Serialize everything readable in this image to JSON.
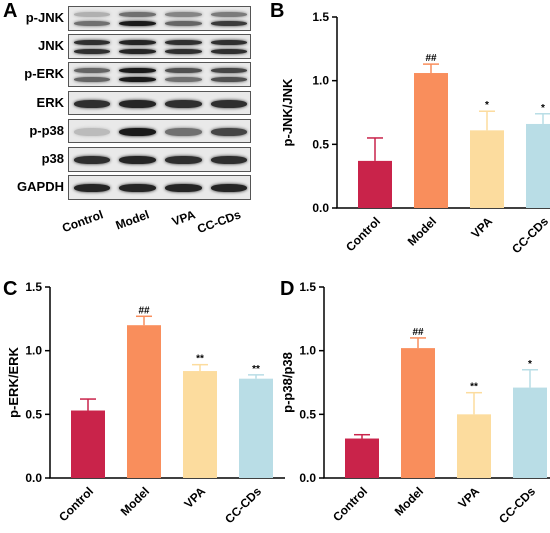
{
  "panels": {
    "A": "A",
    "B": "B",
    "C": "C",
    "D": "D"
  },
  "blot": {
    "rows": [
      {
        "label": "p-JNK",
        "bands": [
          [
            0.25,
            0.55
          ],
          [
            0.55,
            0.95
          ],
          [
            0.45,
            0.6
          ],
          [
            0.5,
            0.8
          ]
        ]
      },
      {
        "label": "JNK",
        "bands": [
          [
            0.85,
            0.85
          ],
          [
            0.9,
            0.9
          ],
          [
            0.85,
            0.85
          ],
          [
            0.85,
            0.85
          ]
        ]
      },
      {
        "label": "p-ERK",
        "bands": [
          [
            0.6,
            0.6
          ],
          [
            0.95,
            0.95
          ],
          [
            0.7,
            0.55
          ],
          [
            0.75,
            0.7
          ]
        ]
      },
      {
        "label": "ERK",
        "bands": [
          [
            0.85
          ],
          [
            0.9
          ],
          [
            0.85
          ],
          [
            0.85
          ]
        ]
      },
      {
        "label": "p-p38",
        "bands": [
          [
            0.2
          ],
          [
            0.95
          ],
          [
            0.55
          ],
          [
            0.75
          ]
        ]
      },
      {
        "label": "p38",
        "bands": [
          [
            0.85
          ],
          [
            0.9
          ],
          [
            0.85
          ],
          [
            0.85
          ]
        ]
      },
      {
        "label": "GAPDH",
        "bands": [
          [
            0.9
          ],
          [
            0.9
          ],
          [
            0.9
          ],
          [
            0.9
          ]
        ]
      }
    ],
    "lanes": [
      "Control",
      "Model",
      "VPA",
      "CC-CDs"
    ]
  },
  "chart_data": [
    {
      "type": "bar",
      "panel": "B",
      "categories": [
        "Control",
        "Model",
        "VPA",
        "CC-CDs"
      ],
      "values": [
        0.37,
        1.06,
        0.61,
        0.66
      ],
      "errors": [
        0.18,
        0.07,
        0.15,
        0.08
      ],
      "annotations": [
        "",
        "##",
        "*",
        "*"
      ],
      "colors": [
        "#c9234a",
        "#f98e5c",
        "#fcdc9e",
        "#b9dde6"
      ],
      "ylabel": "p-JNK/JNK",
      "ylim": [
        0,
        1.5
      ],
      "yticks": [
        "0.0",
        "0.5",
        "1.0",
        "1.5"
      ]
    },
    {
      "type": "bar",
      "panel": "C",
      "categories": [
        "Control",
        "Model",
        "VPA",
        "CC-CDs"
      ],
      "values": [
        0.53,
        1.2,
        0.84,
        0.78
      ],
      "errors": [
        0.09,
        0.07,
        0.05,
        0.03
      ],
      "annotations": [
        "",
        "##",
        "**",
        "**"
      ],
      "colors": [
        "#c9234a",
        "#f98e5c",
        "#fcdc9e",
        "#b9dde6"
      ],
      "ylabel": "p-ERK/ERK",
      "ylim": [
        0,
        1.5
      ],
      "yticks": [
        "0.0",
        "0.5",
        "1.0",
        "1.5"
      ]
    },
    {
      "type": "bar",
      "panel": "D",
      "categories": [
        "Control",
        "Model",
        "VPA",
        "CC-CDs"
      ],
      "values": [
        0.31,
        1.02,
        0.5,
        0.71
      ],
      "errors": [
        0.03,
        0.08,
        0.17,
        0.14
      ],
      "annotations": [
        "",
        "##",
        "**",
        "*"
      ],
      "colors": [
        "#c9234a",
        "#f98e5c",
        "#fcdc9e",
        "#b9dde6"
      ],
      "ylabel": "p-p38/p38",
      "ylim": [
        0,
        1.5
      ],
      "yticks": [
        "0.0",
        "0.5",
        "1.0",
        "1.5"
      ]
    }
  ]
}
